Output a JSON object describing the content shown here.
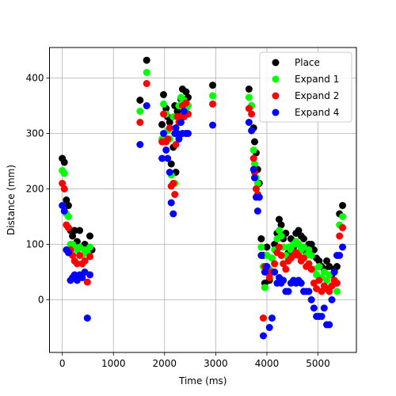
{
  "chart_data": {
    "type": "scatter",
    "xlabel": "Time (ms)",
    "ylabel": "Distance (mm)",
    "xlim": [
      -250,
      5750
    ],
    "ylim": [
      -95,
      455
    ],
    "xticks": [
      0,
      1000,
      2000,
      3000,
      4000,
      5000
    ],
    "yticks": [
      0,
      100,
      200,
      300,
      400
    ],
    "grid": true,
    "legend_position": "top-right",
    "series": [
      {
        "name": "Place",
        "color": "#000000",
        "points": [
          [
            0,
            255
          ],
          [
            40,
            248
          ],
          [
            80,
            180
          ],
          [
            120,
            170
          ],
          [
            160,
            125
          ],
          [
            200,
            115
          ],
          [
            240,
            125
          ],
          [
            290,
            105
          ],
          [
            340,
            125
          ],
          [
            390,
            95
          ],
          [
            440,
            100
          ],
          [
            490,
            90
          ],
          [
            540,
            115
          ],
          [
            580,
            90
          ],
          [
            1520,
            360
          ],
          [
            1650,
            432
          ],
          [
            1950,
            316
          ],
          [
            1980,
            370
          ],
          [
            2030,
            345
          ],
          [
            2060,
            330
          ],
          [
            2100,
            320
          ],
          [
            2130,
            245
          ],
          [
            2170,
            275
          ],
          [
            2200,
            350
          ],
          [
            2220,
            230
          ],
          [
            2250,
            340
          ],
          [
            2280,
            295
          ],
          [
            2320,
            362
          ],
          [
            2350,
            380
          ],
          [
            2380,
            340
          ],
          [
            2420,
            375
          ],
          [
            2460,
            365
          ],
          [
            2940,
            387
          ],
          [
            3650,
            380
          ],
          [
            3700,
            350
          ],
          [
            3740,
            310
          ],
          [
            3760,
            285
          ],
          [
            3790,
            265
          ],
          [
            3820,
            235
          ],
          [
            3850,
            210
          ],
          [
            3890,
            110
          ],
          [
            3930,
            80
          ],
          [
            3960,
            30
          ],
          [
            4000,
            95
          ],
          [
            4050,
            35
          ],
          [
            4100,
            75
          ],
          [
            4150,
            100
          ],
          [
            4200,
            120
          ],
          [
            4240,
            145
          ],
          [
            4280,
            135
          ],
          [
            4320,
            110
          ],
          [
            4370,
            120
          ],
          [
            4420,
            85
          ],
          [
            4470,
            110
          ],
          [
            4520,
            95
          ],
          [
            4570,
            120
          ],
          [
            4620,
            125
          ],
          [
            4670,
            115
          ],
          [
            4720,
            110
          ],
          [
            4770,
            85
          ],
          [
            4820,
            100
          ],
          [
            4870,
            100
          ],
          [
            4920,
            90
          ],
          [
            4970,
            75
          ],
          [
            5020,
            70
          ],
          [
            5070,
            60
          ],
          [
            5120,
            55
          ],
          [
            5170,
            70
          ],
          [
            5220,
            60
          ],
          [
            5270,
            45
          ],
          [
            5320,
            55
          ],
          [
            5370,
            60
          ],
          [
            5420,
            155
          ],
          [
            5480,
            170
          ]
        ]
      },
      {
        "name": "Expand 1",
        "color": "#00ff00",
        "points": [
          [
            0,
            233
          ],
          [
            40,
            228
          ],
          [
            80,
            155
          ],
          [
            120,
            150
          ],
          [
            160,
            100
          ],
          [
            200,
            100
          ],
          [
            240,
            95
          ],
          [
            290,
            90
          ],
          [
            340,
            95
          ],
          [
            390,
            80
          ],
          [
            440,
            90
          ],
          [
            490,
            85
          ],
          [
            540,
            95
          ],
          [
            1520,
            340
          ],
          [
            1650,
            410
          ],
          [
            1950,
            290
          ],
          [
            1980,
            353
          ],
          [
            2030,
            335
          ],
          [
            2060,
            305
          ],
          [
            2100,
            290
          ],
          [
            2130,
            225
          ],
          [
            2170,
            330
          ],
          [
            2200,
            210
          ],
          [
            2220,
            300
          ],
          [
            2250,
            330
          ],
          [
            2280,
            350
          ],
          [
            2320,
            365
          ],
          [
            2350,
            355
          ],
          [
            2380,
            360
          ],
          [
            2420,
            345
          ],
          [
            2460,
            350
          ],
          [
            2940,
            368
          ],
          [
            3650,
            365
          ],
          [
            3700,
            350
          ],
          [
            3740,
            270
          ],
          [
            3760,
            245
          ],
          [
            3790,
            220
          ],
          [
            3820,
            210
          ],
          [
            3850,
            185
          ],
          [
            3890,
            95
          ],
          [
            3930,
            60
          ],
          [
            3960,
            22
          ],
          [
            4000,
            80
          ],
          [
            4050,
            55
          ],
          [
            4100,
            75
          ],
          [
            4150,
            90
          ],
          [
            4200,
            110
          ],
          [
            4240,
            125
          ],
          [
            4280,
            115
          ],
          [
            4320,
            95
          ],
          [
            4370,
            80
          ],
          [
            4420,
            95
          ],
          [
            4470,
            90
          ],
          [
            4520,
            100
          ],
          [
            4570,
            105
          ],
          [
            4620,
            100
          ],
          [
            4670,
            90
          ],
          [
            4720,
            95
          ],
          [
            4770,
            80
          ],
          [
            4820,
            90
          ],
          [
            4870,
            80
          ],
          [
            4920,
            55
          ],
          [
            4970,
            45
          ],
          [
            5020,
            60
          ],
          [
            5070,
            40
          ],
          [
            5120,
            50
          ],
          [
            5170,
            35
          ],
          [
            5220,
            45
          ],
          [
            5270,
            25
          ],
          [
            5320,
            30
          ],
          [
            5370,
            15
          ],
          [
            5420,
            135
          ],
          [
            5480,
            150
          ]
        ]
      },
      {
        "name": "Expand 2",
        "color": "#ff0000",
        "points": [
          [
            0,
            210
          ],
          [
            40,
            200
          ],
          [
            80,
            135
          ],
          [
            120,
            130
          ],
          [
            160,
            90
          ],
          [
            200,
            80
          ],
          [
            240,
            70
          ],
          [
            290,
            65
          ],
          [
            340,
            80
          ],
          [
            390,
            65
          ],
          [
            440,
            70
          ],
          [
            490,
            32
          ],
          [
            540,
            78
          ],
          [
            1520,
            320
          ],
          [
            1650,
            390
          ],
          [
            1950,
            285
          ],
          [
            1980,
            335
          ],
          [
            2030,
            285
          ],
          [
            2060,
            290
          ],
          [
            2100,
            310
          ],
          [
            2130,
            205
          ],
          [
            2170,
            210
          ],
          [
            2200,
            190
          ],
          [
            2220,
            280
          ],
          [
            2250,
            330
          ],
          [
            2280,
            320
          ],
          [
            2320,
            330
          ],
          [
            2350,
            350
          ],
          [
            2380,
            330
          ],
          [
            2420,
            355
          ],
          [
            2460,
            335
          ],
          [
            2940,
            353
          ],
          [
            3650,
            345
          ],
          [
            3700,
            335
          ],
          [
            3740,
            255
          ],
          [
            3760,
            230
          ],
          [
            3790,
            200
          ],
          [
            3820,
            190
          ],
          [
            3850,
            185
          ],
          [
            3890,
            80
          ],
          [
            3930,
            -33
          ],
          [
            3960,
            60
          ],
          [
            4000,
            50
          ],
          [
            4050,
            40
          ],
          [
            4100,
            50
          ],
          [
            4150,
            65
          ],
          [
            4200,
            85
          ],
          [
            4240,
            95
          ],
          [
            4280,
            80
          ],
          [
            4320,
            65
          ],
          [
            4370,
            55
          ],
          [
            4420,
            70
          ],
          [
            4470,
            75
          ],
          [
            4520,
            80
          ],
          [
            4570,
            85
          ],
          [
            4620,
            80
          ],
          [
            4670,
            70
          ],
          [
            4720,
            75
          ],
          [
            4770,
            60
          ],
          [
            4820,
            65
          ],
          [
            4870,
            55
          ],
          [
            4920,
            30
          ],
          [
            4970,
            20
          ],
          [
            5020,
            35
          ],
          [
            5070,
            15
          ],
          [
            5120,
            25
          ],
          [
            5170,
            20
          ],
          [
            5220,
            15
          ],
          [
            5270,
            25
          ],
          [
            5320,
            35
          ],
          [
            5370,
            30
          ],
          [
            5420,
            115
          ],
          [
            5480,
            130
          ]
        ]
      },
      {
        "name": "Expand 4",
        "color": "#0000ff",
        "points": [
          [
            0,
            170
          ],
          [
            40,
            160
          ],
          [
            80,
            90
          ],
          [
            120,
            85
          ],
          [
            160,
            35
          ],
          [
            200,
            40
          ],
          [
            240,
            45
          ],
          [
            290,
            35
          ],
          [
            340,
            45
          ],
          [
            390,
            40
          ],
          [
            440,
            50
          ],
          [
            490,
            -33
          ],
          [
            540,
            45
          ],
          [
            1520,
            280
          ],
          [
            1650,
            350
          ],
          [
            1950,
            255
          ],
          [
            1980,
            300
          ],
          [
            2030,
            270
          ],
          [
            2060,
            255
          ],
          [
            2100,
            230
          ],
          [
            2130,
            175
          ],
          [
            2170,
            155
          ],
          [
            2200,
            300
          ],
          [
            2220,
            310
          ],
          [
            2250,
            300
          ],
          [
            2280,
            290
          ],
          [
            2320,
            320
          ],
          [
            2350,
            300
          ],
          [
            2380,
            340
          ],
          [
            2420,
            300
          ],
          [
            2460,
            300
          ],
          [
            2940,
            315
          ],
          [
            3650,
            320
          ],
          [
            3700,
            305
          ],
          [
            3740,
            235
          ],
          [
            3760,
            220
          ],
          [
            3790,
            185
          ],
          [
            3820,
            160
          ],
          [
            3850,
            185
          ],
          [
            3890,
            80
          ],
          [
            3930,
            -65
          ],
          [
            3960,
            50
          ],
          [
            4000,
            60
          ],
          [
            4050,
            -50
          ],
          [
            4100,
            -33
          ],
          [
            4150,
            50
          ],
          [
            4200,
            30
          ],
          [
            4240,
            40
          ],
          [
            4280,
            30
          ],
          [
            4320,
            35
          ],
          [
            4370,
            15
          ],
          [
            4420,
            15
          ],
          [
            4470,
            30
          ],
          [
            4520,
            35
          ],
          [
            4570,
            30
          ],
          [
            4620,
            35
          ],
          [
            4670,
            30
          ],
          [
            4720,
            15
          ],
          [
            4770,
            15
          ],
          [
            4820,
            15
          ],
          [
            4870,
            0
          ],
          [
            4920,
            -15
          ],
          [
            4970,
            -30
          ],
          [
            5020,
            -30
          ],
          [
            5070,
            -30
          ],
          [
            5120,
            -15
          ],
          [
            5170,
            -45
          ],
          [
            5220,
            -45
          ],
          [
            5270,
            0
          ],
          [
            5320,
            50
          ],
          [
            5370,
            80
          ],
          [
            5420,
            80
          ],
          [
            5480,
            95
          ]
        ]
      }
    ]
  }
}
